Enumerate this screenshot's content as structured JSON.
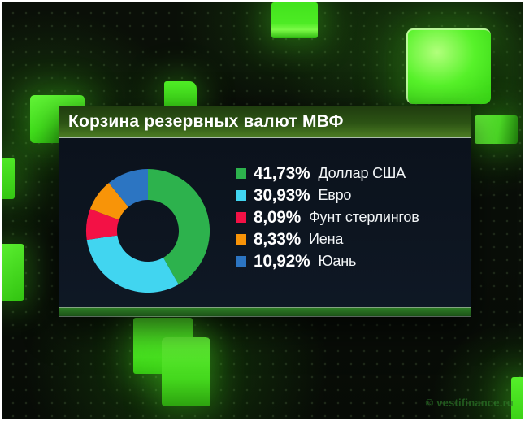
{
  "panel": {
    "title": "Корзина резервных валют МВФ"
  },
  "chart_data": {
    "type": "pie",
    "subtype": "donut",
    "title": "Корзина резервных валют МВФ",
    "start_angle_deg": 0,
    "direction": "clockwise",
    "inner_radius_ratio": 0.5,
    "legend_position": "right",
    "items": [
      {
        "label": "Доллар США",
        "value_pct": 41.73,
        "value_display": "41,73%",
        "color": "#2db24d"
      },
      {
        "label": "Евро",
        "value_pct": 30.93,
        "value_display": "30,93%",
        "color": "#41d5f0"
      },
      {
        "label": "Фунт стерлингов",
        "value_pct": 8.09,
        "value_display": "8,09%",
        "color": "#f31145"
      },
      {
        "label": "Иена",
        "value_pct": 8.33,
        "value_display": "8,33%",
        "color": "#f89408"
      },
      {
        "label": "Юань",
        "value_pct": 10.92,
        "value_display": "10,92%",
        "color": "#2c75c2"
      }
    ]
  },
  "watermark": "© vestifinance.ru",
  "colors": {
    "background": "#090e08",
    "panel_body": "#0d1520",
    "title_bar_top": "#203d0f",
    "title_bar_bottom": "#4a7a22",
    "bottom_strip": "#236120",
    "cube_green": "#4ce822",
    "watermark_text": "#2e7d2a"
  }
}
